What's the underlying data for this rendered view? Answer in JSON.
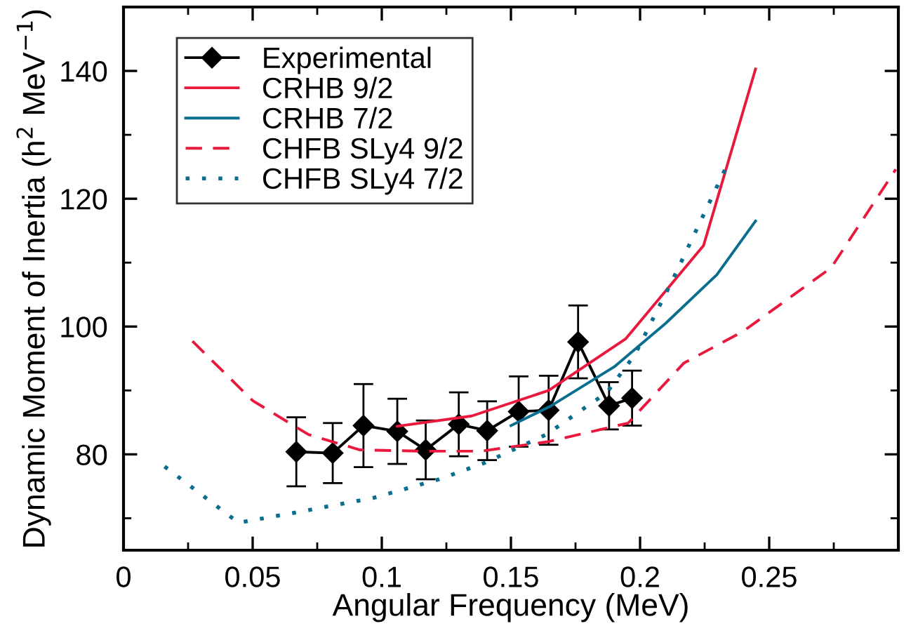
{
  "chart_data": {
    "type": "line",
    "xlabel": "Angular Frequency (MeV)",
    "ylabel": "Dynamic Moment of Inertia (h$^{2}$ MeV$^{−1}$)",
    "xlim": [
      0,
      0.3
    ],
    "ylim": [
      65,
      150
    ],
    "xticks": [
      0,
      {
        "value": 0.025,
        "label": null
      },
      0.05,
      {
        "value": 0.075,
        "label": null
      },
      0.1,
      {
        "value": 0.125,
        "label": null
      },
      0.15,
      {
        "value": 0.175,
        "label": null
      },
      0.2,
      {
        "value": 0.225,
        "label": null
      },
      0.25,
      {
        "value": 0.275,
        "label": null
      }
    ],
    "yticks": [
      {
        "value": 70,
        "label": null
      },
      80,
      {
        "value": 90,
        "label": null
      },
      100,
      {
        "value": 110,
        "label": null
      },
      120,
      {
        "value": 130,
        "label": null
      },
      140
    ],
    "grid": false,
    "legend": "top left",
    "series": [
      {
        "name": "Experimental",
        "color": "#000000",
        "marker": "diamond",
        "line_style": "solid",
        "x": [
          0.0669,
          0.081,
          0.0929,
          0.106,
          0.117,
          0.1298,
          0.1408,
          0.153,
          0.1646,
          0.176,
          0.188,
          0.1969
        ],
        "values": [
          80.4,
          80.2,
          84.5,
          83.6,
          80.7,
          84.7,
          83.7,
          86.7,
          86.9,
          97.6,
          87.6,
          88.8
        ],
        "errors": [
          5.4,
          4.7,
          6.5,
          5.1,
          4.6,
          5.0,
          4.6,
          5.5,
          5.4,
          5.7,
          3.7,
          4.3
        ]
      },
      {
        "name": "CRHB 9/2",
        "color": "#e8193c",
        "marker": "none",
        "line_style": "solid",
        "x": [
          0.106,
          0.1348,
          0.1646,
          0.1945,
          0.2246,
          0.2447
        ],
        "values": [
          84.4,
          86.0,
          90.0,
          98.1,
          112.7,
          140.3
        ]
      },
      {
        "name": "CRHB 7/2",
        "color": "#0a6e8f",
        "marker": "none",
        "line_style": "solid",
        "x": [
          0.15,
          0.1656,
          0.19,
          0.2099,
          0.2297,
          0.2447
        ],
        "values": [
          84.5,
          87.6,
          93.7,
          100.5,
          108.1,
          116.5
        ]
      },
      {
        "name": "CHFB SLy4 9/2",
        "color": "#e8193c",
        "marker": "none",
        "line_style": "dashed",
        "x": [
          0.0267,
          0.05,
          0.0716,
          0.0915,
          0.115,
          0.1385,
          0.1646,
          0.1954,
          0.217,
          0.2397,
          0.274,
          0.299
        ],
        "values": [
          97.7,
          88.4,
          83.1,
          80.7,
          80.5,
          80.5,
          82.0,
          84.9,
          94.3,
          99.2,
          109.2,
          124.6
        ]
      },
      {
        "name": "CHFB SLy4 7/2",
        "color": "#0a6e8f",
        "marker": "none",
        "line_style": "dotted",
        "x": [
          0.0159,
          0.0445,
          0.068,
          0.0969,
          0.1222,
          0.14,
          0.1637,
          0.1872,
          0.198,
          0.2126,
          0.2333
        ],
        "values": [
          78.1,
          69.3,
          71.0,
          73.2,
          76.1,
          78.7,
          83.1,
          89.7,
          95.6,
          107.3,
          124.9
        ]
      }
    ]
  }
}
